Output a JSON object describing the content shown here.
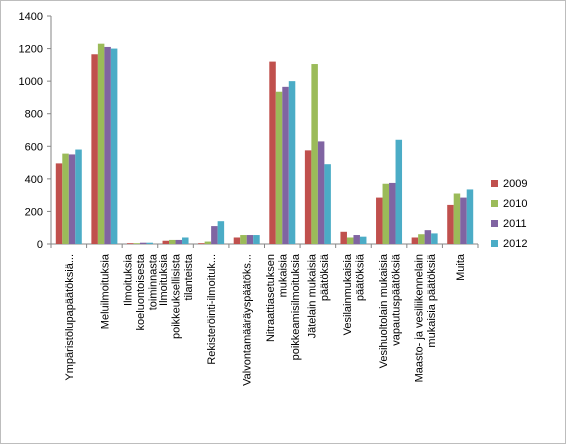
{
  "chart_data": {
    "type": "bar",
    "title": "",
    "xlabel": "",
    "ylabel": "",
    "ylim": [
      0,
      1400
    ],
    "yticks": [
      0,
      200,
      400,
      600,
      800,
      1000,
      1200,
      1400
    ],
    "grid": false,
    "legend_position": "right",
    "categories": [
      [
        "Ympäristölupapäätöksiä..."
      ],
      [
        "Meluilmoituksia"
      ],
      [
        "Ilmoituksia",
        "koeluontoisesta",
        "toiminnasta"
      ],
      [
        "Ilmoituksia",
        "poikkeuksellisista",
        "tilanteista"
      ],
      [
        "Rekisteröinti-ilmoituk..."
      ],
      [
        "Valvontamääräyspäätöks..."
      ],
      [
        "Nitraattiasetuksen",
        "mukaisia",
        "poikkeamisilmoituksia"
      ],
      [
        "Jätelain mukaisia",
        "päätöksiä"
      ],
      [
        "Vesilainmukaisia",
        "päätöksiä"
      ],
      [
        "Vesihuoltolain mukaisia",
        "vapautuspäätöksiä"
      ],
      [
        "Maasto- ja vesiliikennelain",
        "mukaisia päätöksiä"
      ],
      [
        "Muita"
      ]
    ],
    "series": [
      {
        "name": "2009",
        "color": "#c0504d",
        "values": [
          495,
          1165,
          5,
          20,
          5,
          40,
          1120,
          575,
          75,
          285,
          40,
          240
        ]
      },
      {
        "name": "2010",
        "color": "#9bbb59",
        "values": [
          555,
          1230,
          5,
          25,
          15,
          55,
          935,
          1105,
          40,
          370,
          60,
          310
        ]
      },
      {
        "name": "2011",
        "color": "#8064a2",
        "values": [
          550,
          1210,
          8,
          25,
          110,
          55,
          965,
          630,
          55,
          375,
          85,
          285
        ]
      },
      {
        "name": "2012",
        "color": "#4bacc6",
        "values": [
          580,
          1200,
          8,
          40,
          140,
          55,
          1000,
          490,
          45,
          640,
          65,
          335
        ]
      }
    ]
  }
}
